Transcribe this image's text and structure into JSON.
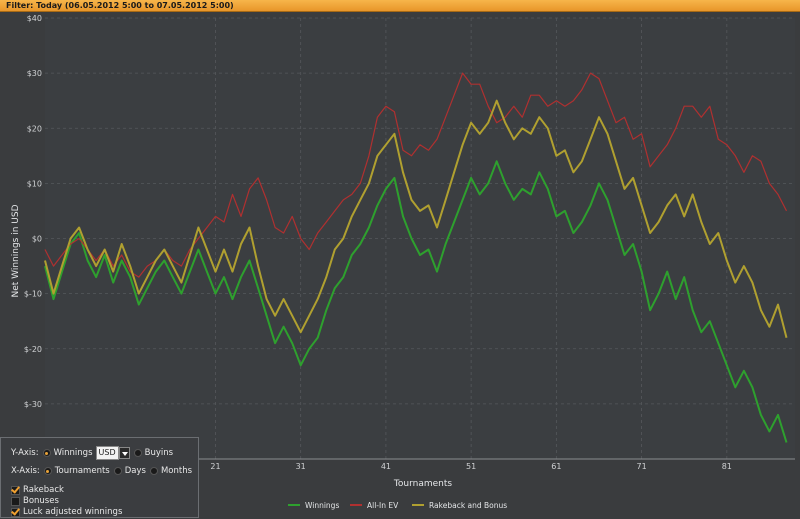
{
  "filter": {
    "text": "Filter: Today (06.05.2012 5:00 to 07.05.2012 5:00)"
  },
  "chart_data": {
    "type": "line",
    "xlabel": "Tournaments",
    "ylabel": "Net Winnings in USD",
    "xlim": [
      1,
      89
    ],
    "ylim": [
      -40,
      40
    ],
    "x_ticks": [
      21,
      31,
      41,
      51,
      61,
      71,
      81
    ],
    "y_ticks": [
      {
        "v": 40,
        "label": "$40"
      },
      {
        "v": 30,
        "label": "$30"
      },
      {
        "v": 20,
        "label": "$20"
      },
      {
        "v": 10,
        "label": "$10"
      },
      {
        "v": 0,
        "label": "$0"
      },
      {
        "v": -10,
        "label": "$-10"
      },
      {
        "v": -20,
        "label": "$-20"
      },
      {
        "v": -30,
        "label": "$-30"
      }
    ],
    "grid": true,
    "legend_position": "bottom",
    "x_start": 1,
    "series": [
      {
        "name": "Winnings",
        "color": "#2ea02e",
        "values": [
          -5,
          -11,
          -6,
          -1,
          1,
          -4,
          -7,
          -3,
          -8,
          -4,
          -7,
          -12,
          -9,
          -6,
          -4,
          -7,
          -10,
          -6,
          -2,
          -6,
          -10,
          -7,
          -11,
          -7,
          -4,
          -9,
          -14,
          -19,
          -16,
          -19,
          -23,
          -20,
          -18,
          -13,
          -9,
          -7,
          -3,
          -1,
          2,
          6,
          9,
          11,
          4,
          0,
          -3,
          -2,
          -6,
          -1,
          3,
          7,
          11,
          8,
          10,
          14,
          10,
          7,
          9,
          8,
          12,
          9,
          4,
          5,
          1,
          3,
          6,
          10,
          7,
          2,
          -3,
          -1,
          -6,
          -13,
          -10,
          -6,
          -11,
          -7,
          -13,
          -17,
          -15,
          -19,
          -23,
          -27,
          -24,
          -27,
          -32,
          -35,
          -32,
          -37
        ]
      },
      {
        "name": "All-In EV",
        "color": "#b03030",
        "values": [
          -2,
          -5,
          -3,
          -1,
          0,
          -2,
          -4,
          -2,
          -5,
          -3,
          -6,
          -7,
          -5,
          -4,
          -2,
          -4,
          -5,
          -2,
          0,
          2,
          4,
          3,
          8,
          4,
          9,
          11,
          7,
          2,
          1,
          4,
          0,
          -2,
          1,
          3,
          5,
          7,
          8,
          10,
          15,
          22,
          24,
          23,
          16,
          15,
          17,
          16,
          18,
          22,
          26,
          30,
          28,
          28,
          24,
          21,
          22,
          24,
          22,
          26,
          26,
          24,
          25,
          24,
          25,
          27,
          30,
          29,
          25,
          21,
          22,
          18,
          19,
          13,
          15,
          17,
          20,
          24,
          24,
          22,
          24,
          18,
          17,
          15,
          12,
          15,
          14,
          10,
          8,
          5
        ]
      },
      {
        "name": "Rakeback and Bonus",
        "color": "#b0a030",
        "values": [
          -4,
          -10,
          -5,
          0,
          2,
          -2,
          -5,
          -2,
          -6,
          -1,
          -5,
          -10,
          -7,
          -4,
          -2,
          -5,
          -8,
          -3,
          2,
          -2,
          -6,
          -2,
          -6,
          -1,
          2,
          -5,
          -11,
          -14,
          -11,
          -14,
          -17,
          -14,
          -11,
          -7,
          -2,
          0,
          4,
          7,
          10,
          15,
          17,
          19,
          12,
          7,
          5,
          6,
          2,
          7,
          12,
          17,
          21,
          19,
          21,
          25,
          21,
          18,
          20,
          19,
          22,
          20,
          15,
          16,
          12,
          14,
          18,
          22,
          19,
          14,
          9,
          11,
          6,
          1,
          3,
          6,
          8,
          4,
          8,
          3,
          -1,
          1,
          -4,
          -8,
          -5,
          -8,
          -13,
          -16,
          -12,
          -18
        ]
      }
    ]
  },
  "options": {
    "y_axis_label": "Y-Axis:",
    "y_winnings": "Winnings",
    "currency": "USD",
    "y_buyins": "Buyins",
    "x_axis_label": "X-Axis:",
    "x_tournaments": "Tournaments",
    "x_days": "Days",
    "x_months": "Months",
    "rakeback": "Rakeback",
    "bonuses": "Bonuses",
    "luck": "Luck adjusted winnings"
  }
}
